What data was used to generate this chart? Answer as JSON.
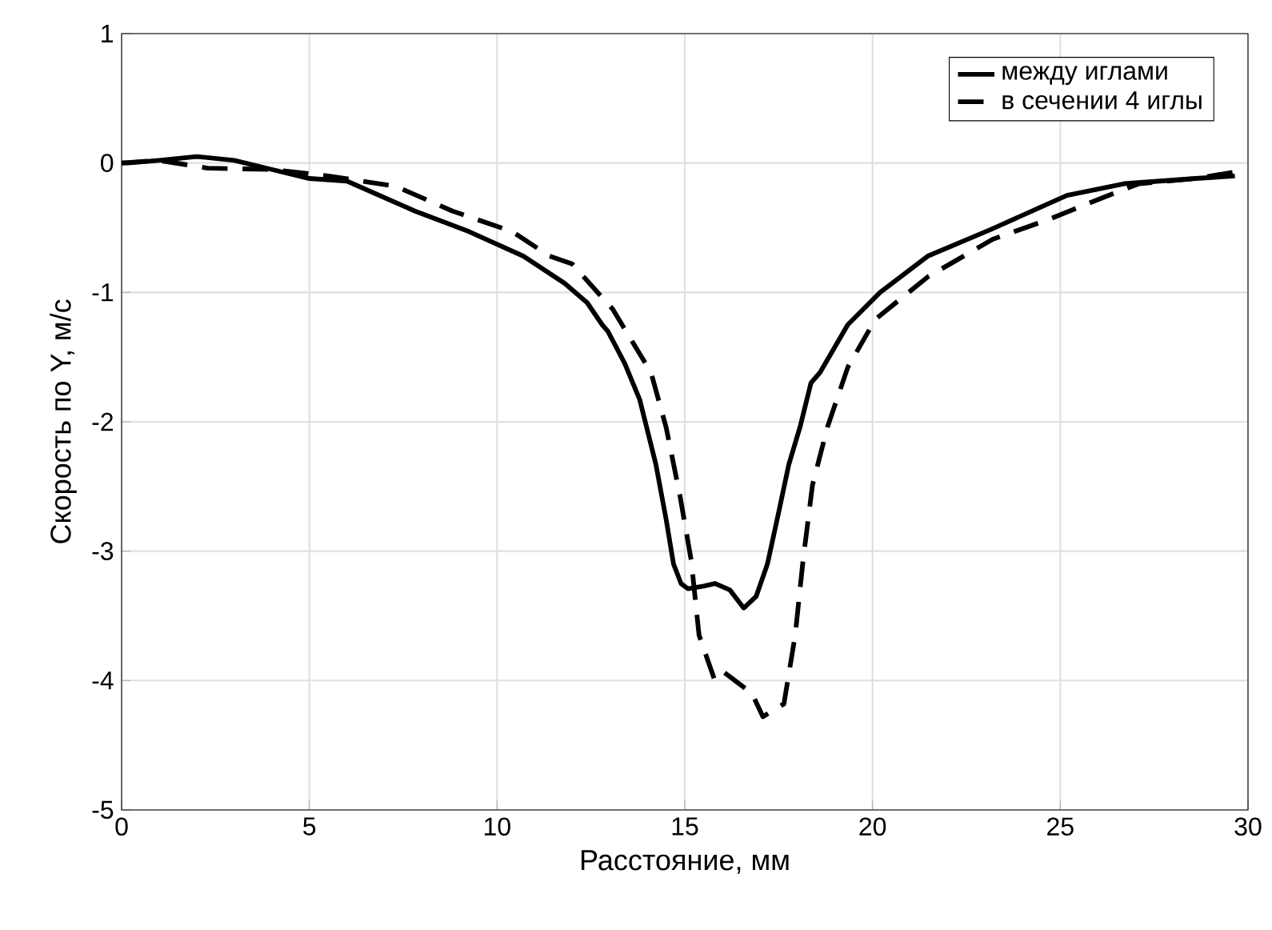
{
  "chart_data": {
    "type": "line",
    "xlabel": "Расстояние, мм",
    "ylabel": "Скорость по Y, м/с",
    "xlim": [
      0,
      30
    ],
    "ylim": [
      -5,
      1
    ],
    "xticks": [
      0,
      5,
      10,
      15,
      20,
      25,
      30
    ],
    "yticks": [
      -5,
      -4,
      -3,
      -2,
      -1,
      0,
      1
    ],
    "grid": true,
    "legend": "top right",
    "series": [
      {
        "name": "между иглами",
        "color": "#000000",
        "line_style": "solid",
        "x": [
          0,
          0.17,
          1,
          2.0,
          3,
          4,
          5.0,
          6.0,
          7.8,
          9.25,
          10.7,
          11.8,
          12.4,
          12.8,
          12.95,
          13.4,
          13.8,
          14.23,
          14.5,
          14.7,
          14.9,
          15.08,
          15.5,
          15.8,
          16.2,
          16.57,
          16.9,
          17.2,
          17.5,
          17.77,
          18.07,
          18.36,
          18.6,
          19.0,
          19.34,
          20.2,
          21.47,
          23.18,
          25.18,
          26.7,
          28.6,
          29.65
        ],
        "values": [
          0,
          0,
          0.02,
          0.05,
          0.02,
          -0.05,
          -0.12,
          -0.14,
          -0.37,
          -0.53,
          -0.72,
          -0.93,
          -1.08,
          -1.25,
          -1.3,
          -1.55,
          -1.83,
          -2.33,
          -2.75,
          -3.1,
          -3.25,
          -3.29,
          -3.27,
          -3.25,
          -3.3,
          -3.44,
          -3.35,
          -3.1,
          -2.7,
          -2.33,
          -2.04,
          -1.7,
          -1.62,
          -1.42,
          -1.25,
          -1.0,
          -0.72,
          -0.51,
          -0.25,
          -0.16,
          -0.12,
          -0.1
        ]
      },
      {
        "name": "в сечении 4 иглы",
        "color": "#000000",
        "line_style": "dashed",
        "x": [
          0,
          1,
          2.3,
          4,
          5.5,
          7.3,
          8.8,
          10.4,
          11.4,
          12.0,
          13.08,
          14.1,
          14.5,
          14.87,
          15.17,
          15.38,
          15.8,
          16.06,
          16.79,
          17.08,
          17.64,
          17.94,
          18.15,
          18.4,
          18.8,
          19.34,
          20.07,
          21.47,
          23.2,
          24.75,
          26.2,
          27.1,
          28.6,
          29.65
        ],
        "values": [
          0,
          0.02,
          -0.04,
          -0.05,
          -0.1,
          -0.18,
          -0.37,
          -0.53,
          -0.72,
          -0.78,
          -1.13,
          -1.62,
          -2.04,
          -2.57,
          -3.07,
          -3.65,
          -4.0,
          -3.94,
          -4.1,
          -4.28,
          -4.18,
          -3.65,
          -3.07,
          -2.49,
          -2.04,
          -1.58,
          -1.21,
          -0.88,
          -0.59,
          -0.43,
          -0.26,
          -0.16,
          -0.12,
          -0.07
        ]
      }
    ]
  }
}
